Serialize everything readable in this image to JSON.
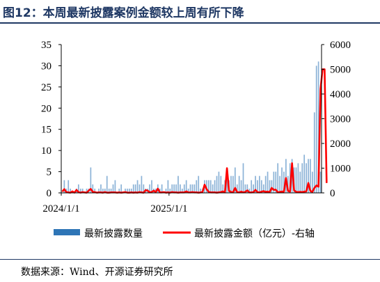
{
  "title": "图12：本周最新披露案例金额较上周有所下降",
  "source": "数据来源：Wind、开源证券研究所",
  "colors": {
    "title": "#1f3864",
    "bar": "#2e75b6",
    "line": "#ff0000"
  },
  "chart_data": {
    "type": "bar+line",
    "x_tick_labels": [
      "2024/1/1",
      "2025/1/1"
    ],
    "left_axis": {
      "range": [
        0,
        35
      ],
      "ticks": [
        "0",
        "5",
        "10",
        "15",
        "20",
        "25",
        "30",
        "35"
      ]
    },
    "right_axis": {
      "range": [
        0,
        6000
      ],
      "ticks": [
        "0",
        "1000",
        "2000",
        "3000",
        "4000",
        "5000",
        "6000"
      ]
    },
    "grid": false,
    "legend_position": "bottom",
    "series": [
      {
        "name": "最新披露数量",
        "kind": "bar",
        "axis": "left",
        "values": [
          0,
          3,
          1,
          3,
          1,
          0,
          0,
          1,
          2,
          1,
          1,
          0,
          1,
          1,
          6,
          2,
          1,
          0,
          1,
          2,
          1,
          1,
          4,
          1,
          1,
          2,
          3,
          0,
          1,
          2,
          0,
          1,
          1,
          1,
          1,
          2,
          2,
          3,
          2,
          4,
          2,
          1,
          1,
          2,
          3,
          1,
          1,
          2,
          1,
          2,
          0,
          1,
          3,
          1,
          2,
          2,
          2,
          4,
          2,
          1,
          2,
          3,
          1,
          2,
          2,
          2,
          3,
          4,
          1,
          1,
          3,
          3,
          3,
          3,
          2,
          3,
          4,
          5,
          4,
          2,
          3,
          5,
          3,
          4,
          4,
          6,
          2,
          4,
          3,
          7,
          2,
          2,
          1,
          3,
          2,
          4,
          3,
          4,
          3,
          2,
          4,
          5,
          3,
          3,
          5,
          5,
          7,
          4,
          6,
          5,
          8,
          4,
          7,
          8,
          6,
          6,
          7,
          5,
          7,
          9,
          7,
          8,
          8,
          5,
          19,
          30,
          31,
          5
        ]
      },
      {
        "name": "最新披露金额（亿元）-右轴",
        "kind": "line",
        "axis": "right",
        "values": [
          50,
          150,
          30,
          20,
          10,
          60,
          10,
          120,
          30,
          10,
          30,
          20,
          10,
          90,
          160,
          40,
          30,
          10,
          20,
          20,
          10,
          30,
          10,
          10,
          20,
          20,
          20,
          10,
          20,
          10,
          20,
          30,
          10,
          10,
          20,
          10,
          20,
          10,
          30,
          20,
          10,
          110,
          90,
          20,
          40,
          90,
          30,
          170,
          20,
          20,
          30,
          10,
          20,
          10,
          30,
          20,
          20,
          10,
          20,
          20,
          20,
          60,
          20,
          20,
          30,
          20,
          20,
          10,
          20,
          40,
          330,
          150,
          40,
          20,
          20,
          20,
          10,
          20,
          30,
          60,
          20,
          1000,
          80,
          40,
          20,
          200,
          30,
          20,
          50,
          20,
          40,
          100,
          20,
          20,
          30,
          120,
          30,
          20,
          50,
          70,
          40,
          50,
          30,
          200,
          120,
          130,
          20,
          40,
          50,
          50,
          600,
          80,
          50,
          1200,
          100,
          40,
          30,
          40,
          30,
          50,
          60,
          400,
          80,
          40,
          200,
          300,
          250,
          4200,
          5000,
          5000,
          400
        ]
      }
    ]
  },
  "legend": {
    "bar_label": "最新披露数量",
    "line_label": "最新披露金额（亿元）-右轴"
  }
}
